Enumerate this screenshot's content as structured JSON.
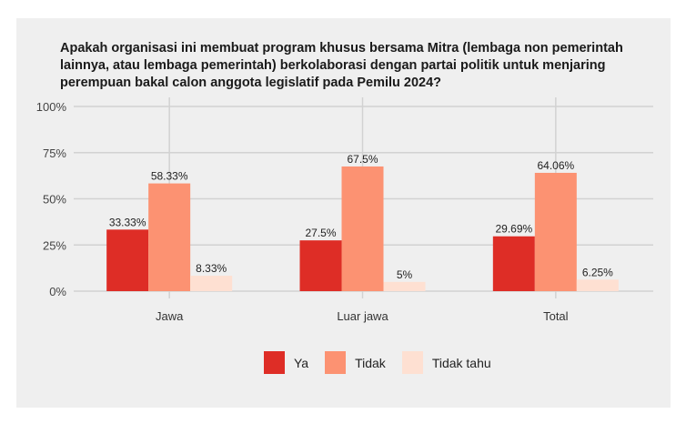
{
  "chart_data": {
    "type": "bar",
    "title": "Apakah organisasi ini membuat program khusus bersama Mitra (lembaga non pemerintah\nlainnya, atau lembaga pemerintah) berkolaborasi dengan partai politik untuk menjaring\nperempuan bakal calon anggota legislatif pada Pemilu 2024?",
    "categories": [
      "Jawa",
      "Luar jawa",
      "Total"
    ],
    "series": [
      {
        "name": "Ya",
        "color": "#de2d26",
        "values": [
          33.33,
          27.5,
          29.69
        ],
        "labels": [
          "33.33%",
          "27.5%",
          "29.69%"
        ]
      },
      {
        "name": "Tidak",
        "color": "#fc9272",
        "values": [
          58.33,
          67.5,
          64.06
        ],
        "labels": [
          "58.33%",
          "67.5%",
          "64.06%"
        ]
      },
      {
        "name": "Tidak tahu",
        "color": "#fee0d2",
        "values": [
          8.33,
          5,
          6.25
        ],
        "labels": [
          "8.33%",
          "5%",
          "6.25%"
        ]
      }
    ],
    "yticks": [
      0,
      25,
      50,
      75,
      100
    ],
    "ytick_labels": [
      "0%",
      "25%",
      "50%",
      "75%",
      "100%"
    ],
    "ylim": [
      0,
      100
    ],
    "xlabel": "",
    "ylabel": "",
    "grid": true,
    "legend": "bottom"
  }
}
